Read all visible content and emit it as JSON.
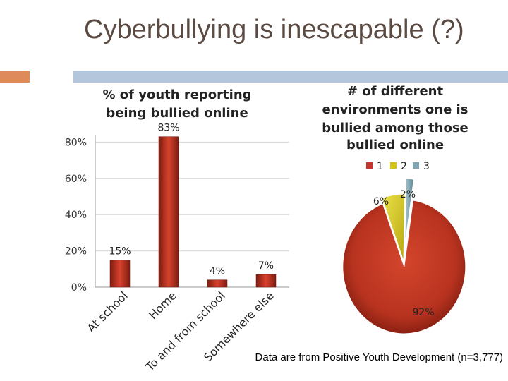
{
  "slide": {
    "title": "Cyberbullying is inescapable (?)",
    "source": "Data are from Positive Youth Development (n=3,777)"
  },
  "colors": {
    "accent_orange": "#de8a5a",
    "accent_blue": "#b3c6db",
    "red": "#c0392b",
    "yellow": "#d4c21a",
    "teal": "#7fa6b3"
  },
  "chart_data": [
    {
      "type": "bar",
      "title_lines": [
        "% of youth reporting",
        "being bullied online"
      ],
      "categories": [
        "At school",
        "Home",
        "To and from school",
        "Somewhere else"
      ],
      "values": [
        15,
        83,
        4,
        7
      ],
      "value_labels": [
        "15%",
        "83%",
        "4%",
        "7%"
      ],
      "ylim": [
        0,
        100
      ],
      "yticks": [
        "0%",
        "20%",
        "40%",
        "60%",
        "80%"
      ],
      "grid": true
    },
    {
      "type": "pie",
      "title_lines": [
        "# of different",
        "environments one is",
        "bullied among those",
        "bullied online"
      ],
      "legend": [
        "1",
        "2",
        "3"
      ],
      "legend_placement": "top",
      "values": [
        92,
        6,
        2
      ],
      "value_labels": [
        "92%",
        "6%",
        "2%"
      ]
    }
  ]
}
